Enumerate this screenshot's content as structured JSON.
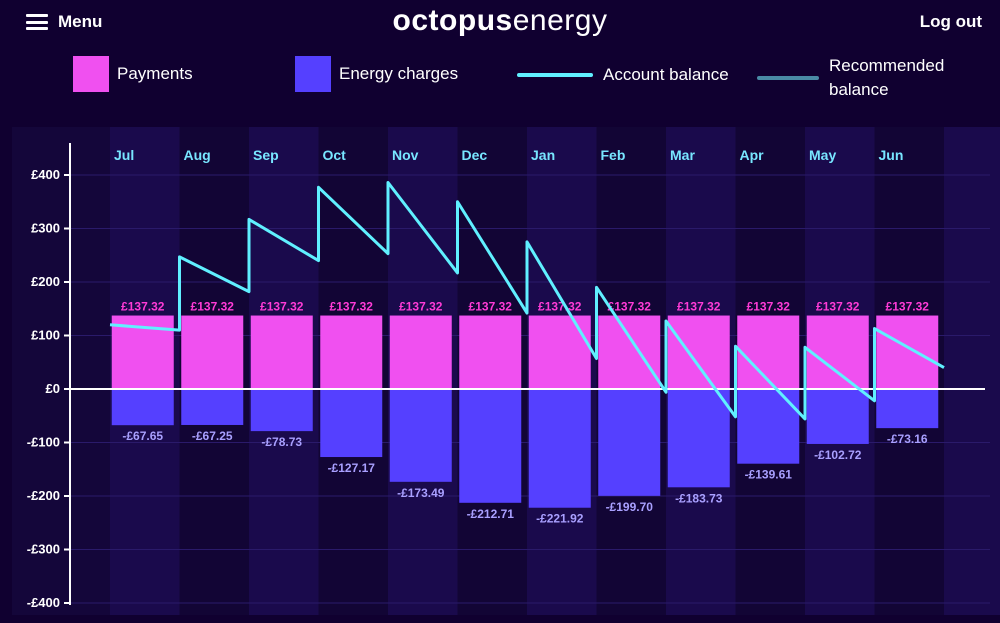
{
  "header": {
    "menu_label": "Menu",
    "logo_bold": "octopus",
    "logo_light": "energy",
    "logout_label": "Log out"
  },
  "legend": {
    "payments": "Payments",
    "energy_charges": "Energy charges",
    "account_balance": "Account balance",
    "recommended_line1": "Recommended",
    "recommended_line2": "balance"
  },
  "colors": {
    "background": "#100030",
    "payments": "#f050f0",
    "energy_charges": "#5540ff",
    "account_balance": "#60f0ff",
    "recommended_balance": "#4a8aa5"
  },
  "chart_data": {
    "type": "bar",
    "categories": [
      "Jul",
      "Aug",
      "Sep",
      "Oct",
      "Nov",
      "Dec",
      "Jan",
      "Feb",
      "Mar",
      "Apr",
      "May",
      "Jun"
    ],
    "ylim": [
      -400,
      400
    ],
    "yticks": [
      400,
      300,
      200,
      100,
      0,
      -100,
      -200,
      -300,
      -400
    ],
    "ytick_labels": [
      "£400",
      "£300",
      "£200",
      "£100",
      "£0",
      "-£100",
      "-£200",
      "-£300",
      "-£400"
    ],
    "series": [
      {
        "name": "Payments",
        "values": [
          137.32,
          137.32,
          137.32,
          137.32,
          137.32,
          137.32,
          137.32,
          137.32,
          137.32,
          137.32,
          137.32,
          137.32
        ],
        "labels": [
          "£137.32",
          "£137.32",
          "£137.32",
          "£137.32",
          "£137.32",
          "£137.32",
          "£137.32",
          "£137.32",
          "£137.32",
          "£137.32",
          "£137.32",
          "£137.32"
        ]
      },
      {
        "name": "Energy charges",
        "values": [
          -67.65,
          -67.25,
          -78.73,
          -127.17,
          -173.49,
          -212.71,
          -221.92,
          -199.7,
          -183.73,
          -139.61,
          -102.72,
          -73.16
        ],
        "labels": [
          "-£67.65",
          "-£67.25",
          "-£78.73",
          "-£127.17",
          "-£173.49",
          "-£212.71",
          "-£221.92",
          "-£199.70",
          "-£183.73",
          "-£139.61",
          "-£102.72",
          "-£73.16"
        ]
      }
    ],
    "account_balance": [
      [
        0,
        120
      ],
      [
        1,
        110
      ],
      [
        1,
        247
      ],
      [
        2,
        182
      ],
      [
        2,
        317
      ],
      [
        3,
        240
      ],
      [
        3,
        377
      ],
      [
        4,
        253
      ],
      [
        4,
        386
      ],
      [
        5,
        217
      ],
      [
        5,
        350
      ],
      [
        6,
        142
      ],
      [
        6,
        275
      ],
      [
        7,
        57
      ],
      [
        7,
        190
      ],
      [
        8,
        -6
      ],
      [
        8,
        127
      ],
      [
        9,
        -52
      ],
      [
        9,
        80
      ],
      [
        10,
        -56
      ],
      [
        10,
        78
      ],
      [
        11,
        -22
      ],
      [
        11,
        113
      ],
      [
        12,
        40
      ]
    ]
  }
}
